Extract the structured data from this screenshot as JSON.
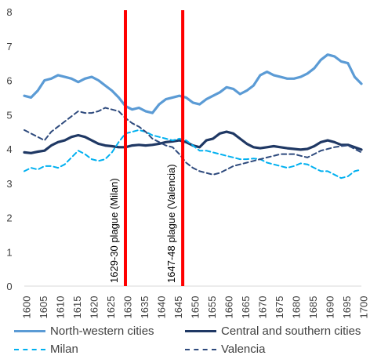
{
  "chart_data": {
    "type": "line",
    "title": "",
    "xlabel": "",
    "ylabel": "",
    "xlim": [
      1600,
      1700
    ],
    "ylim": [
      0,
      8
    ],
    "grid": false,
    "legend_position": "bottom",
    "x_ticks": [
      "1600",
      "1605",
      "1610",
      "1615",
      "1620",
      "1625",
      "1630",
      "1635",
      "1640",
      "1645",
      "1650",
      "1655",
      "1660",
      "1665",
      "1670",
      "1675",
      "1680",
      "1685",
      "1690",
      "1695",
      "1700"
    ],
    "y_ticks": [
      "0",
      "1",
      "2",
      "3",
      "4",
      "5",
      "6",
      "7",
      "8"
    ],
    "series": [
      {
        "name": "North-western cities",
        "color": "#5b9bd5",
        "style": "solid",
        "x": [
          1600,
          1602,
          1604,
          1606,
          1608,
          1610,
          1612,
          1614,
          1616,
          1618,
          1620,
          1622,
          1624,
          1626,
          1628,
          1630,
          1632,
          1634,
          1636,
          1638,
          1640,
          1642,
          1644,
          1646,
          1648,
          1650,
          1652,
          1654,
          1656,
          1658,
          1660,
          1662,
          1664,
          1666,
          1668,
          1670,
          1672,
          1674,
          1676,
          1678,
          1680,
          1682,
          1684,
          1686,
          1688,
          1690,
          1692,
          1694,
          1696,
          1698,
          1700
        ],
        "values": [
          5.55,
          5.5,
          5.7,
          6.0,
          6.05,
          6.15,
          6.1,
          6.05,
          5.95,
          6.05,
          6.1,
          6.0,
          5.85,
          5.7,
          5.5,
          5.25,
          5.15,
          5.2,
          5.1,
          5.05,
          5.3,
          5.45,
          5.5,
          5.55,
          5.5,
          5.35,
          5.3,
          5.45,
          5.55,
          5.65,
          5.8,
          5.75,
          5.6,
          5.7,
          5.85,
          6.15,
          6.25,
          6.15,
          6.1,
          6.05,
          6.05,
          6.1,
          6.2,
          6.35,
          6.6,
          6.75,
          6.7,
          6.55,
          6.5,
          6.1,
          5.9
        ]
      },
      {
        "name": "Central and southern cities",
        "color": "#1f3864",
        "style": "solid",
        "x": [
          1600,
          1602,
          1604,
          1606,
          1608,
          1610,
          1612,
          1614,
          1616,
          1618,
          1620,
          1622,
          1624,
          1626,
          1628,
          1630,
          1632,
          1634,
          1636,
          1638,
          1640,
          1642,
          1644,
          1646,
          1648,
          1650,
          1652,
          1654,
          1656,
          1658,
          1660,
          1662,
          1664,
          1666,
          1668,
          1670,
          1672,
          1674,
          1676,
          1678,
          1680,
          1682,
          1684,
          1686,
          1688,
          1690,
          1692,
          1694,
          1696,
          1698,
          1700
        ],
        "values": [
          3.9,
          3.88,
          3.92,
          3.95,
          4.1,
          4.2,
          4.25,
          4.35,
          4.4,
          4.35,
          4.25,
          4.15,
          4.1,
          4.08,
          4.05,
          4.05,
          4.1,
          4.12,
          4.1,
          4.12,
          4.15,
          4.2,
          4.22,
          4.25,
          4.2,
          4.1,
          4.05,
          4.25,
          4.3,
          4.45,
          4.5,
          4.45,
          4.3,
          4.15,
          4.05,
          4.02,
          4.05,
          4.08,
          4.05,
          4.02,
          4.0,
          3.98,
          4.0,
          4.08,
          4.2,
          4.25,
          4.2,
          4.12,
          4.12,
          4.05,
          3.98
        ]
      },
      {
        "name": "Milan",
        "color": "#00b0f0",
        "style": "dash",
        "x": [
          1600,
          1602,
          1604,
          1606,
          1608,
          1610,
          1612,
          1614,
          1616,
          1618,
          1620,
          1622,
          1624,
          1626,
          1628,
          1630,
          1632,
          1634,
          1636,
          1638,
          1640,
          1642,
          1644,
          1646,
          1648,
          1650,
          1652,
          1654,
          1656,
          1658,
          1660,
          1662,
          1664,
          1666,
          1668,
          1670,
          1672,
          1674,
          1676,
          1678,
          1680,
          1682,
          1684,
          1686,
          1688,
          1690,
          1692,
          1694,
          1696,
          1698,
          1700
        ],
        "values": [
          3.35,
          3.45,
          3.4,
          3.5,
          3.5,
          3.45,
          3.55,
          3.75,
          3.95,
          3.85,
          3.7,
          3.65,
          3.7,
          3.9,
          4.2,
          4.45,
          4.5,
          4.55,
          4.5,
          4.4,
          4.35,
          4.3,
          4.25,
          4.3,
          4.25,
          4.1,
          3.95,
          3.95,
          3.9,
          3.85,
          3.8,
          3.75,
          3.7,
          3.7,
          3.72,
          3.7,
          3.6,
          3.55,
          3.5,
          3.45,
          3.5,
          3.58,
          3.55,
          3.45,
          3.35,
          3.35,
          3.25,
          3.15,
          3.2,
          3.35,
          3.4
        ]
      },
      {
        "name": "Valencia",
        "color": "#2e4a7d",
        "style": "dash",
        "x": [
          1600,
          1602,
          1604,
          1606,
          1608,
          1610,
          1612,
          1614,
          1616,
          1618,
          1620,
          1622,
          1624,
          1626,
          1628,
          1630,
          1632,
          1634,
          1636,
          1638,
          1640,
          1642,
          1644,
          1646,
          1648,
          1650,
          1652,
          1654,
          1656,
          1658,
          1660,
          1662,
          1664,
          1666,
          1668,
          1670,
          1672,
          1674,
          1676,
          1678,
          1680,
          1682,
          1684,
          1686,
          1688,
          1690,
          1692,
          1694,
          1696,
          1698,
          1700
        ],
        "values": [
          4.55,
          4.45,
          4.35,
          4.25,
          4.5,
          4.65,
          4.8,
          4.95,
          5.1,
          5.05,
          5.05,
          5.1,
          5.2,
          5.15,
          5.1,
          4.9,
          4.75,
          4.65,
          4.5,
          4.3,
          4.2,
          4.1,
          4.05,
          3.85,
          3.6,
          3.45,
          3.35,
          3.3,
          3.25,
          3.3,
          3.4,
          3.5,
          3.55,
          3.6,
          3.65,
          3.7,
          3.75,
          3.8,
          3.85,
          3.85,
          3.85,
          3.8,
          3.75,
          3.85,
          3.95,
          4.0,
          4.05,
          4.08,
          4.1,
          4.0,
          3.9
        ]
      }
    ],
    "annotations": [
      {
        "x": 1630,
        "label": "1629-30 plague (Milan)",
        "color": "#ff0000"
      },
      {
        "x": 1647,
        "label": "1647-48 plague (Valencia)",
        "color": "#ff0000"
      }
    ]
  }
}
